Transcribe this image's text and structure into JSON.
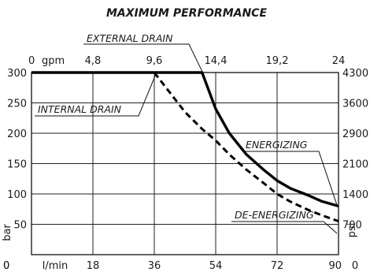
{
  "chart_data": {
    "type": "line",
    "title": "MAXIMUM PERFORMANCE",
    "x": [
      0,
      9,
      18,
      27,
      36,
      45,
      50,
      54,
      58,
      63,
      68,
      72,
      76,
      81,
      85,
      90
    ],
    "series": [
      {
        "name": "ENERGIZING",
        "line_style": "solid",
        "values": [
          300,
          300,
          300,
          300,
          300,
          300,
          300,
          240,
          200,
          165,
          140,
          122,
          109,
          98,
          88,
          80
        ]
      },
      {
        "name": "DE-ENERGIZING",
        "line_style": "dashed",
        "values": [
          300,
          300,
          300,
          300,
          300,
          235,
          207,
          188,
          165,
          140,
          118,
          100,
          87,
          74,
          65,
          55
        ]
      }
    ],
    "annotations": [
      "EXTERNAL DRAIN",
      "INTERNAL DRAIN"
    ],
    "xlim": [
      0,
      90
    ],
    "ylim": [
      0,
      300
    ],
    "axes": {
      "bottom": {
        "ticks": [
          "0",
          "18",
          "36",
          "54",
          "72",
          "90"
        ],
        "unit": "l/min"
      },
      "top": {
        "ticks": [
          "0",
          "4,8",
          "9,6",
          "14,4",
          "19,2",
          "24"
        ],
        "unit": "gpm"
      },
      "left": {
        "ticks": [
          "0",
          "50",
          "100",
          "150",
          "200",
          "250",
          "300"
        ],
        "unit": "bar"
      },
      "right": {
        "ticks": [
          "0",
          "700",
          "1400",
          "2100",
          "2900",
          "3600",
          "4300"
        ],
        "unit": "psi"
      }
    },
    "grid": true,
    "colors": {
      "line": "#000000",
      "grid": "#222222"
    }
  }
}
